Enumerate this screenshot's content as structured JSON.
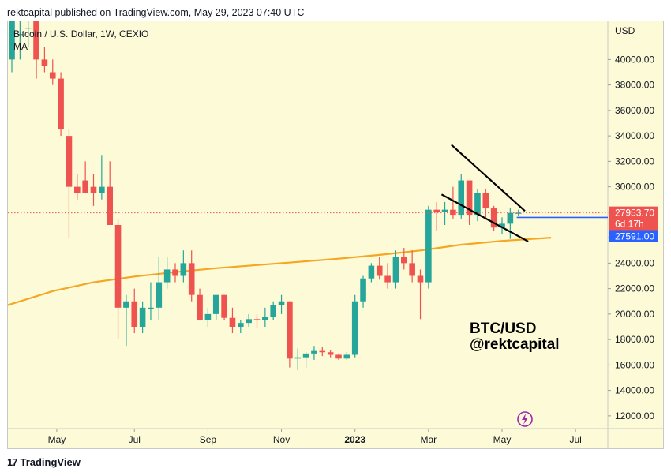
{
  "header": {
    "published_line": "rektcapital published on TradingView.com, May 29, 2023 07:40 UTC"
  },
  "footer": {
    "brand": "TradingView",
    "brand_glyph": "17"
  },
  "colors": {
    "background": "#fdfbd7",
    "up": "#26a69a",
    "down": "#ef5350",
    "ma": "#f5a623",
    "trendline": "#000000",
    "blue_line": "#2962ff",
    "price_label": "#ef5350",
    "blue_label": "#2962ff",
    "icon_circle": "#9c27b0"
  },
  "chart_data": {
    "type": "candlestick",
    "title": "Bitcoin / U.S. Dollar, 1W, CEXIO",
    "indicator": "MA",
    "currency": "USD",
    "ylim": [
      11000,
      43000
    ],
    "yticks": [
      "40000.00",
      "38000.00",
      "36000.00",
      "34000.00",
      "32000.00",
      "30000.00",
      "28000.00",
      "26000.00",
      "24000.00",
      "22000.00",
      "20000.00",
      "18000.00",
      "16000.00",
      "14000.00",
      "12000.00"
    ],
    "xticks": [
      "May",
      "Jul",
      "Sep",
      "Nov",
      "2023",
      "Mar",
      "May",
      "Jul"
    ],
    "xtick_index": [
      5.5,
      15,
      24,
      33,
      42,
      51,
      60,
      69
    ],
    "last_price_label": "27953.70",
    "countdown_label": "6d 17h",
    "ma_price_label": "27591.00",
    "annotation_pair": "BTC/USD",
    "annotation_handle": "@rektcapital",
    "candles": [
      {
        "o": 40000,
        "h": 43000,
        "l": 39000,
        "c": 43000
      },
      {
        "o": 42000,
        "h": 43000,
        "l": 40000,
        "c": 42000
      },
      {
        "o": 42500,
        "h": 43000,
        "l": 41000,
        "c": 42500
      },
      {
        "o": 43000,
        "h": 43000,
        "l": 38500,
        "c": 40000
      },
      {
        "o": 40000,
        "h": 41000,
        "l": 39000,
        "c": 39500
      },
      {
        "o": 39000,
        "h": 40000,
        "l": 38000,
        "c": 38500
      },
      {
        "o": 38500,
        "h": 39000,
        "l": 34000,
        "c": 34500
      },
      {
        "o": 34000,
        "h": 34500,
        "l": 26000,
        "c": 30000
      },
      {
        "o": 30000,
        "h": 31000,
        "l": 29000,
        "c": 29500
      },
      {
        "o": 30500,
        "h": 32000,
        "l": 29500,
        "c": 29500
      },
      {
        "o": 30000,
        "h": 31000,
        "l": 28500,
        "c": 29500
      },
      {
        "o": 29500,
        "h": 32500,
        "l": 29000,
        "c": 30000
      },
      {
        "o": 30000,
        "h": 32000,
        "l": 27000,
        "c": 27000
      },
      {
        "o": 27000,
        "h": 27500,
        "l": 18000,
        "c": 20500
      },
      {
        "o": 20500,
        "h": 21500,
        "l": 17500,
        "c": 21000
      },
      {
        "o": 21000,
        "h": 22000,
        "l": 18500,
        "c": 19000
      },
      {
        "o": 19000,
        "h": 21000,
        "l": 18500,
        "c": 20500
      },
      {
        "o": 20500,
        "h": 22500,
        "l": 19500,
        "c": 20500
      },
      {
        "o": 20500,
        "h": 24500,
        "l": 19500,
        "c": 22500
      },
      {
        "o": 22500,
        "h": 24500,
        "l": 22000,
        "c": 23500
      },
      {
        "o": 23500,
        "h": 24000,
        "l": 22500,
        "c": 23000
      },
      {
        "o": 23000,
        "h": 25000,
        "l": 22500,
        "c": 24000
      },
      {
        "o": 24000,
        "h": 25000,
        "l": 21000,
        "c": 21500
      },
      {
        "o": 21500,
        "h": 22000,
        "l": 19500,
        "c": 19500
      },
      {
        "o": 19500,
        "h": 20500,
        "l": 19000,
        "c": 20000
      },
      {
        "o": 20000,
        "h": 21500,
        "l": 19500,
        "c": 21500
      },
      {
        "o": 21500,
        "h": 21500,
        "l": 19500,
        "c": 19700
      },
      {
        "o": 19700,
        "h": 20500,
        "l": 18500,
        "c": 19000
      },
      {
        "o": 19000,
        "h": 19500,
        "l": 18500,
        "c": 19300
      },
      {
        "o": 19300,
        "h": 20000,
        "l": 19000,
        "c": 19600
      },
      {
        "o": 19600,
        "h": 20000,
        "l": 18900,
        "c": 19500
      },
      {
        "o": 19500,
        "h": 20500,
        "l": 19000,
        "c": 19800
      },
      {
        "o": 19800,
        "h": 21000,
        "l": 19500,
        "c": 20700
      },
      {
        "o": 20700,
        "h": 21500,
        "l": 20000,
        "c": 21000
      },
      {
        "o": 21000,
        "h": 21000,
        "l": 15800,
        "c": 16500
      },
      {
        "o": 16500,
        "h": 17300,
        "l": 15600,
        "c": 16600
      },
      {
        "o": 16600,
        "h": 17000,
        "l": 15800,
        "c": 16900
      },
      {
        "o": 16900,
        "h": 17500,
        "l": 16400,
        "c": 17100
      },
      {
        "o": 17100,
        "h": 17400,
        "l": 16700,
        "c": 17000
      },
      {
        "o": 17000,
        "h": 17200,
        "l": 16600,
        "c": 16800
      },
      {
        "o": 16800,
        "h": 16900,
        "l": 16400,
        "c": 16500
      },
      {
        "o": 16500,
        "h": 17000,
        "l": 16400,
        "c": 16800
      },
      {
        "o": 16800,
        "h": 21500,
        "l": 16600,
        "c": 21000
      },
      {
        "o": 21000,
        "h": 23000,
        "l": 20500,
        "c": 22800
      },
      {
        "o": 22800,
        "h": 24000,
        "l": 22500,
        "c": 23800
      },
      {
        "o": 23800,
        "h": 24500,
        "l": 22700,
        "c": 23000
      },
      {
        "o": 23000,
        "h": 24000,
        "l": 22000,
        "c": 22500
      },
      {
        "o": 22500,
        "h": 25000,
        "l": 22000,
        "c": 24500
      },
      {
        "o": 24500,
        "h": 25200,
        "l": 23500,
        "c": 24000
      },
      {
        "o": 24000,
        "h": 25000,
        "l": 22500,
        "c": 23000
      },
      {
        "o": 23000,
        "h": 23500,
        "l": 19600,
        "c": 22500
      },
      {
        "o": 22500,
        "h": 28500,
        "l": 22000,
        "c": 28200
      },
      {
        "o": 28200,
        "h": 28800,
        "l": 26500,
        "c": 28000
      },
      {
        "o": 28000,
        "h": 28800,
        "l": 27000,
        "c": 28200
      },
      {
        "o": 28200,
        "h": 30000,
        "l": 27500,
        "c": 27800
      },
      {
        "o": 27800,
        "h": 31000,
        "l": 27500,
        "c": 30500
      },
      {
        "o": 30500,
        "h": 30500,
        "l": 27000,
        "c": 27800
      },
      {
        "o": 27800,
        "h": 29800,
        "l": 27300,
        "c": 29500
      },
      {
        "o": 29500,
        "h": 29800,
        "l": 27500,
        "c": 28300
      },
      {
        "o": 28300,
        "h": 28500,
        "l": 26500,
        "c": 26800
      },
      {
        "o": 26800,
        "h": 27600,
        "l": 26300,
        "c": 27100
      },
      {
        "o": 27100,
        "h": 28300,
        "l": 25900,
        "c": 27950
      },
      {
        "o": 27950,
        "h": 28200,
        "l": 27700,
        "c": 27954
      }
    ],
    "ma_line": [
      {
        "i": -0.5,
        "v": 20700
      },
      {
        "i": 5,
        "v": 21800
      },
      {
        "i": 10,
        "v": 22500
      },
      {
        "i": 15,
        "v": 22950
      },
      {
        "i": 20,
        "v": 23300
      },
      {
        "i": 25,
        "v": 23600
      },
      {
        "i": 30,
        "v": 23850
      },
      {
        "i": 35,
        "v": 24100
      },
      {
        "i": 40,
        "v": 24350
      },
      {
        "i": 45,
        "v": 24650
      },
      {
        "i": 50,
        "v": 25000
      },
      {
        "i": 55,
        "v": 25450
      },
      {
        "i": 60,
        "v": 25750
      },
      {
        "i": 66,
        "v": 26000
      }
    ],
    "trendlines": [
      {
        "from": {
          "i": 53.8,
          "v": 33300
        },
        "to": {
          "i": 62.8,
          "v": 28100
        }
      },
      {
        "from": {
          "i": 52.6,
          "v": 29400
        },
        "to": {
          "i": 63.2,
          "v": 25700
        }
      }
    ],
    "blue_level": 27591
  }
}
